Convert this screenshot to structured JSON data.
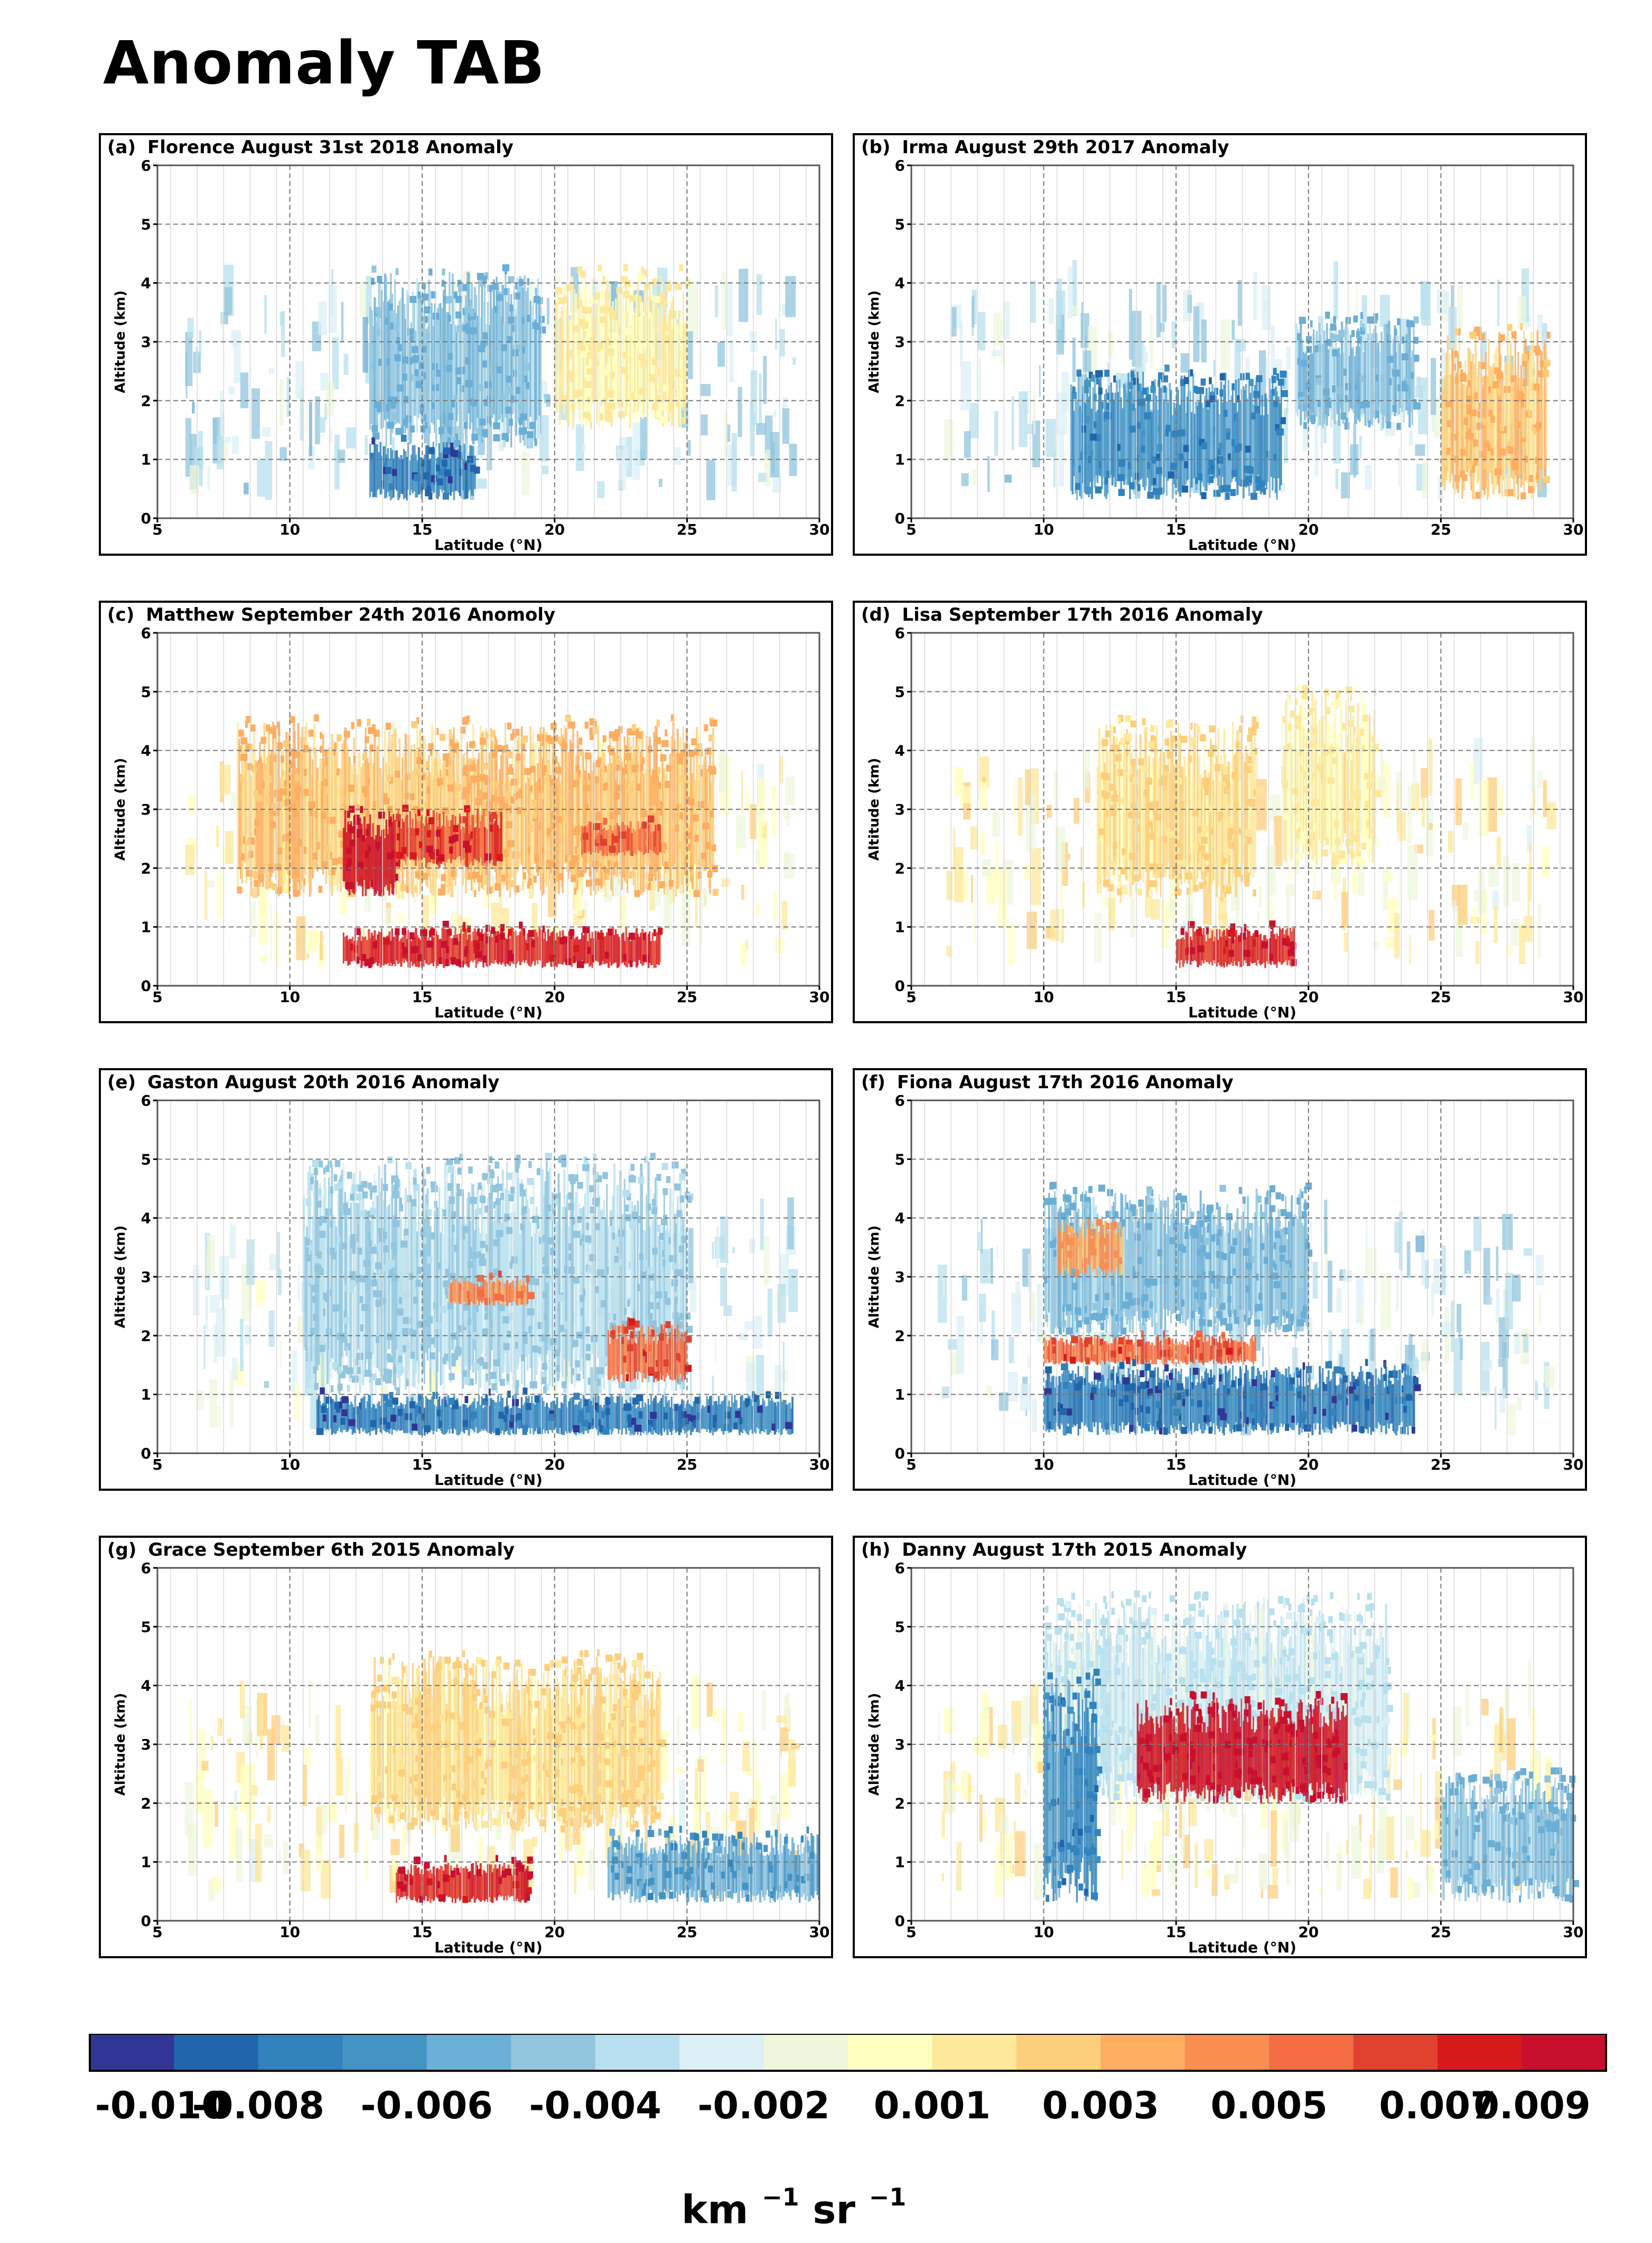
{
  "title": "Anomaly TAB",
  "axes": {
    "xlabel": "Latitude (°N)",
    "ylabel": "Altitude (km)",
    "xlim": [
      5,
      30
    ],
    "ylim": [
      0,
      6
    ],
    "xticks": [
      "5",
      "10",
      "15",
      "20",
      "25",
      "30"
    ],
    "yticks": [
      "0",
      "1",
      "2",
      "3",
      "4",
      "5",
      "6"
    ]
  },
  "colorbar": {
    "colors": [
      "#313695",
      "#2166ac",
      "#3182bd",
      "#4393c3",
      "#6baed6",
      "#92c5de",
      "#b8e0ee",
      "#dcf0f6",
      "#eef7dc",
      "#ffffbf",
      "#fee89a",
      "#fdcf7c",
      "#fdae61",
      "#f98e52",
      "#f46d43",
      "#e0422f",
      "#d7191c",
      "#c8102e"
    ],
    "tick_labels": [
      "-0.010",
      "-0.008",
      "-0.006",
      "-0.004",
      "-0.002",
      "0.001",
      "0.003",
      "0.005",
      "0.007",
      "0.009"
    ],
    "unit": "km",
    "unit_exp1": "−1",
    "unit_sr": "sr",
    "unit_exp2": "−1"
  },
  "chart_data": [
    {
      "type": "heatmap",
      "panel": "(a)",
      "title": "Florence August 31st 2018 Anomaly",
      "dominant": "negative",
      "features": [
        {
          "lat": [
            13,
            19.5
          ],
          "alt": [
            1.2,
            4.2
          ],
          "anomaly": -0.004
        },
        {
          "lat": [
            20,
            25
          ],
          "alt": [
            1.5,
            4.2
          ],
          "anomaly": 0.001
        },
        {
          "lat": [
            13,
            17
          ],
          "alt": [
            0.3,
            1.3
          ],
          "anomaly": -0.007
        }
      ]
    },
    {
      "type": "heatmap",
      "panel": "(b)",
      "title": "Irma August 29th 2017 Anomaly",
      "dominant": "negative",
      "features": [
        {
          "lat": [
            11,
            19
          ],
          "alt": [
            0.3,
            2.5
          ],
          "anomaly": -0.006
        },
        {
          "lat": [
            19.5,
            24
          ],
          "alt": [
            1.5,
            3.4
          ],
          "anomaly": -0.004
        },
        {
          "lat": [
            25,
            29
          ],
          "alt": [
            0.3,
            3.2
          ],
          "anomaly": 0.003
        }
      ]
    },
    {
      "type": "heatmap",
      "panel": "(c)",
      "title": "Matthew September 24th 2016 Anomoly",
      "dominant": "positive",
      "features": [
        {
          "lat": [
            8,
            26
          ],
          "alt": [
            1.5,
            4.5
          ],
          "anomaly": 0.003
        },
        {
          "lat": [
            12,
            14
          ],
          "alt": [
            1.5,
            3
          ],
          "anomaly": 0.009
        },
        {
          "lat": [
            14,
            18
          ],
          "alt": [
            2,
            3
          ],
          "anomaly": 0.007
        },
        {
          "lat": [
            21,
            24
          ],
          "alt": [
            2.2,
            2.8
          ],
          "anomaly": 0.006
        },
        {
          "lat": [
            12,
            24
          ],
          "alt": [
            0.3,
            1
          ],
          "anomaly": 0.008
        }
      ]
    },
    {
      "type": "heatmap",
      "panel": "(d)",
      "title": "Lisa September 17th 2016 Anomaly",
      "dominant": "positive",
      "features": [
        {
          "lat": [
            12,
            18
          ],
          "alt": [
            1.5,
            4.5
          ],
          "anomaly": 0.002
        },
        {
          "lat": [
            19,
            22.5
          ],
          "alt": [
            2,
            5
          ],
          "anomaly": 0.001
        },
        {
          "lat": [
            15,
            19.5
          ],
          "alt": [
            0.3,
            1
          ],
          "anomaly": 0.008
        }
      ]
    },
    {
      "type": "heatmap",
      "panel": "(e)",
      "title": "Gaston August 20th 2016 Anomaly",
      "dominant": "mixed",
      "features": [
        {
          "lat": [
            10.5,
            25
          ],
          "alt": [
            1,
            5
          ],
          "anomaly": -0.003
        },
        {
          "lat": [
            16,
            19
          ],
          "alt": [
            2.5,
            3
          ],
          "anomaly": 0.005
        },
        {
          "lat": [
            22,
            25
          ],
          "alt": [
            1.2,
            2.2
          ],
          "anomaly": 0.006
        },
        {
          "lat": [
            11,
            29
          ],
          "alt": [
            0.3,
            1
          ],
          "anomaly": -0.007
        }
      ]
    },
    {
      "type": "heatmap",
      "panel": "(f)",
      "title": "Fiona August 17th 2016 Anomaly",
      "dominant": "negative",
      "features": [
        {
          "lat": [
            10,
            20
          ],
          "alt": [
            2,
            4.5
          ],
          "anomaly": -0.004
        },
        {
          "lat": [
            10.5,
            13
          ],
          "alt": [
            3,
            4
          ],
          "anomaly": 0.004
        },
        {
          "lat": [
            10,
            18
          ],
          "alt": [
            1.5,
            2
          ],
          "anomaly": 0.006
        },
        {
          "lat": [
            10,
            24
          ],
          "alt": [
            0.3,
            1.5
          ],
          "anomaly": -0.007
        }
      ]
    },
    {
      "type": "heatmap",
      "panel": "(g)",
      "title": "Grace September 6th 2015 Anomaly",
      "dominant": "positive",
      "features": [
        {
          "lat": [
            13,
            24
          ],
          "alt": [
            1.5,
            4.5
          ],
          "anomaly": 0.002
        },
        {
          "lat": [
            14,
            19
          ],
          "alt": [
            0.3,
            1
          ],
          "anomaly": 0.008
        },
        {
          "lat": [
            22,
            30
          ],
          "alt": [
            0.3,
            1.5
          ],
          "anomaly": -0.005
        }
      ]
    },
    {
      "type": "heatmap",
      "panel": "(h)",
      "title": "Danny August 17th 2015 Anomaly",
      "dominant": "positive",
      "features": [
        {
          "lat": [
            10,
            23
          ],
          "alt": [
            2,
            5.5
          ],
          "anomaly": -0.002
        },
        {
          "lat": [
            13.5,
            21.5
          ],
          "alt": [
            2,
            3.8
          ],
          "anomaly": 0.009
        },
        {
          "lat": [
            10,
            12
          ],
          "alt": [
            0.3,
            4.2
          ],
          "anomaly": -0.006
        },
        {
          "lat": [
            25,
            30
          ],
          "alt": [
            0.3,
            2.5
          ],
          "anomaly": -0.004
        }
      ]
    }
  ]
}
